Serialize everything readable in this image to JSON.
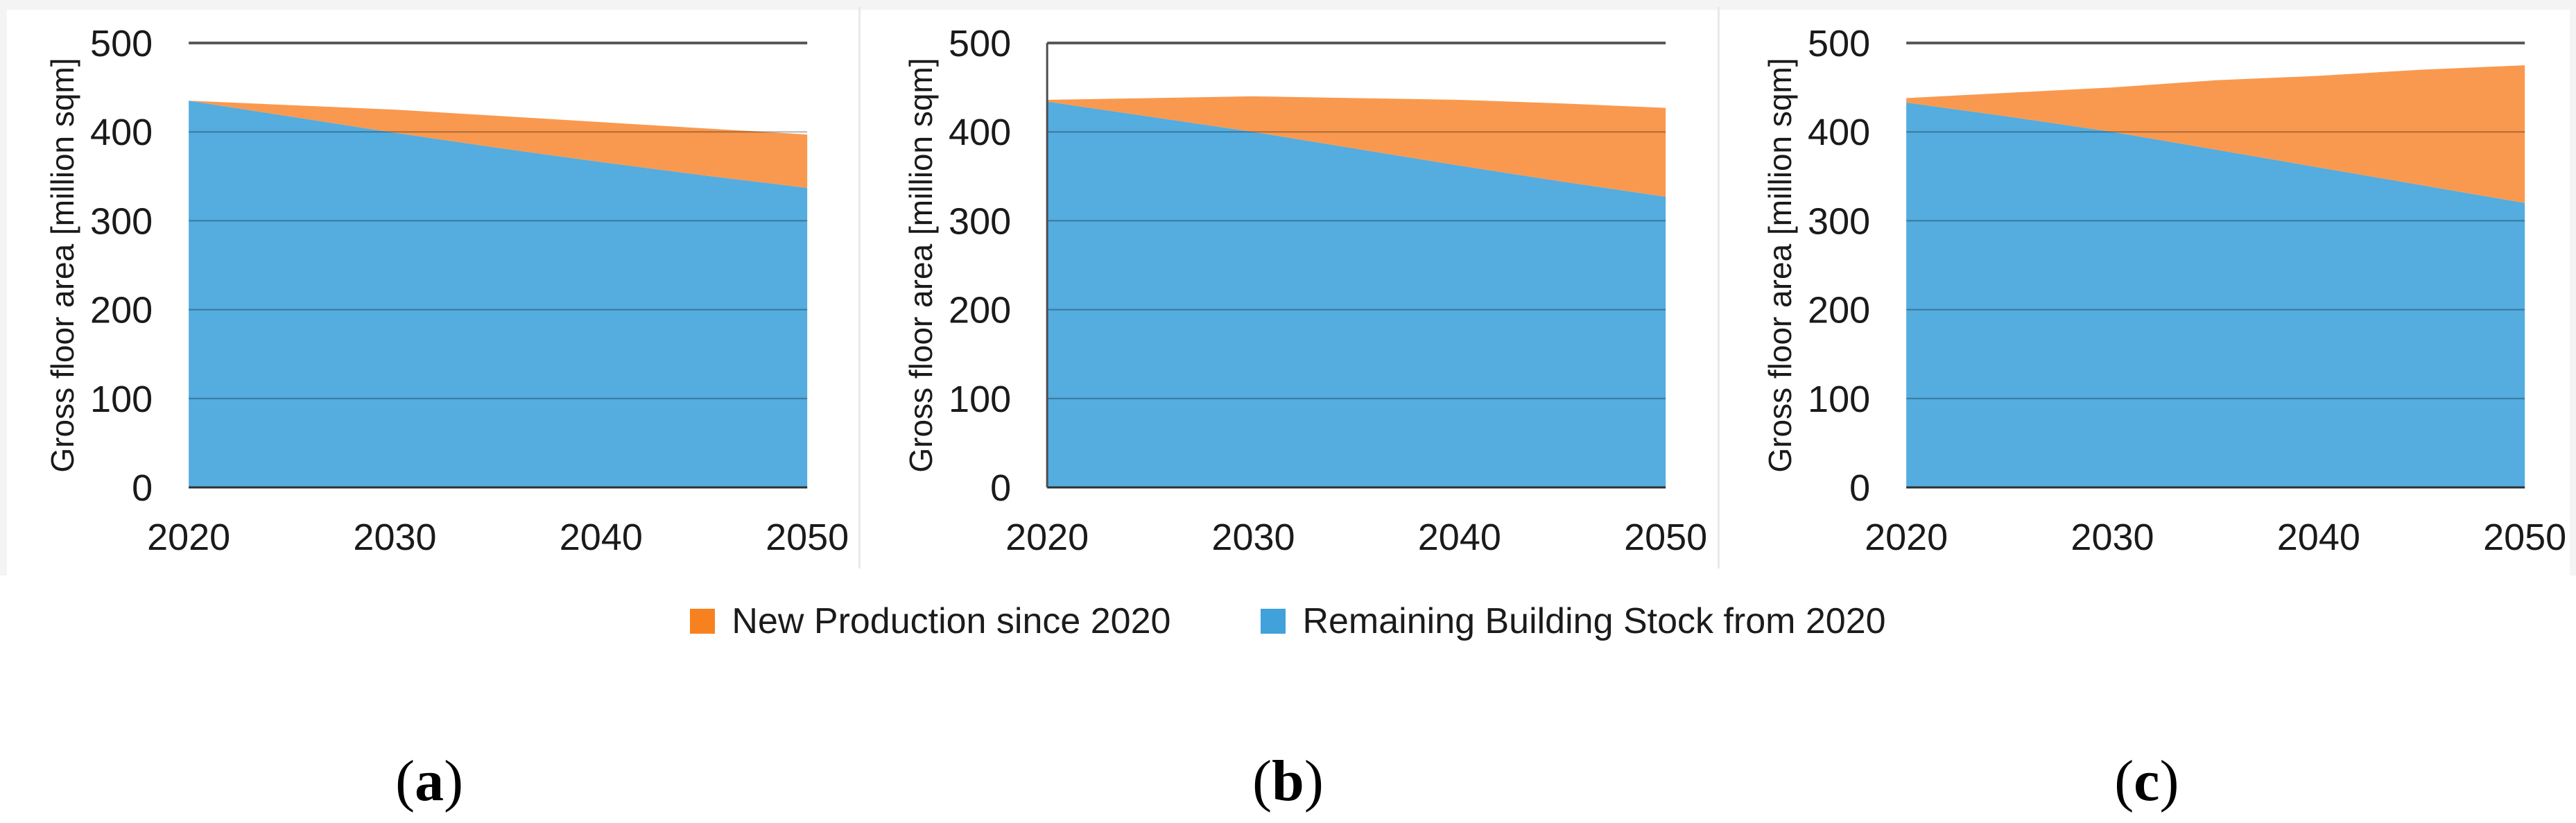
{
  "figure": {
    "background": "#ffffff",
    "panel_count": 3
  },
  "axis": {
    "y_title": "Gross floor area [million sqm]",
    "y_ticks": [
      0,
      100,
      200,
      300,
      400,
      500
    ],
    "x_ticks": [
      2020,
      2030,
      2040,
      2050
    ],
    "y_max": 500,
    "grid": "horizontal",
    "colors": {
      "gridline": "rgba(0,0,0,0.30)",
      "top_border": "#595959",
      "bottom_axis": "#303030",
      "left_axis": "#4d4d4d",
      "tick_text": "#1a1a1a"
    }
  },
  "legend": {
    "position": "bottom-center",
    "items": [
      {
        "label": "New Production since 2020",
        "color": "#F8811F"
      },
      {
        "label": "Remaining Building Stock from 2020",
        "color": "#41A1DA"
      }
    ]
  },
  "captions": [
    {
      "open": "(",
      "letter": "a",
      "close": ")"
    },
    {
      "open": "(",
      "letter": "b",
      "close": ")"
    },
    {
      "open": "(",
      "letter": "c",
      "close": ")"
    }
  ],
  "chart_data": [
    {
      "type": "area",
      "stacked": true,
      "panel": "a",
      "title": "",
      "xlabel": "",
      "ylabel": "Gross floor area [million sqm]",
      "xlim": [
        2020,
        2050
      ],
      "ylim": [
        0,
        500
      ],
      "has_left_border": false,
      "x": [
        2020,
        2025,
        2030,
        2035,
        2040,
        2045,
        2050
      ],
      "series": [
        {
          "name": "Remaining Building Stock from 2020",
          "color": "#54ACDF",
          "values": [
            435,
            417,
            399,
            382,
            366,
            351,
            337
          ]
        },
        {
          "name": "New Production since 2020",
          "color": "#F9994F",
          "values": [
            0,
            13,
            26,
            36,
            45,
            53,
            60
          ]
        }
      ]
    },
    {
      "type": "area",
      "stacked": true,
      "panel": "b",
      "title": "",
      "xlabel": "",
      "ylabel": "Gross floor area [million sqm]",
      "xlim": [
        2020,
        2050
      ],
      "ylim": [
        0,
        500
      ],
      "has_left_border": true,
      "x": [
        2020,
        2025,
        2030,
        2035,
        2040,
        2045,
        2050
      ],
      "series": [
        {
          "name": "Remaining Building Stock from 2020",
          "color": "#54ACDF",
          "values": [
            434,
            417,
            400,
            381,
            362,
            344,
            327
          ]
        },
        {
          "name": "New Production since 2020",
          "color": "#F9994F",
          "values": [
            2,
            21,
            40,
            57,
            74,
            88,
            100
          ]
        }
      ]
    },
    {
      "type": "area",
      "stacked": true,
      "panel": "c",
      "title": "",
      "xlabel": "",
      "ylabel": "Gross floor area [million sqm]",
      "xlim": [
        2020,
        2050
      ],
      "ylim": [
        0,
        500
      ],
      "has_left_border": false,
      "x": [
        2020,
        2025,
        2030,
        2035,
        2040,
        2045,
        2050
      ],
      "series": [
        {
          "name": "Remaining Building Stock from 2020",
          "color": "#54ACDF",
          "values": [
            433,
            417,
            400,
            380,
            360,
            340,
            320
          ]
        },
        {
          "name": "New Production since 2020",
          "color": "#F9994F",
          "values": [
            5,
            27,
            50,
            78,
            103,
            130,
            155
          ]
        }
      ]
    }
  ]
}
